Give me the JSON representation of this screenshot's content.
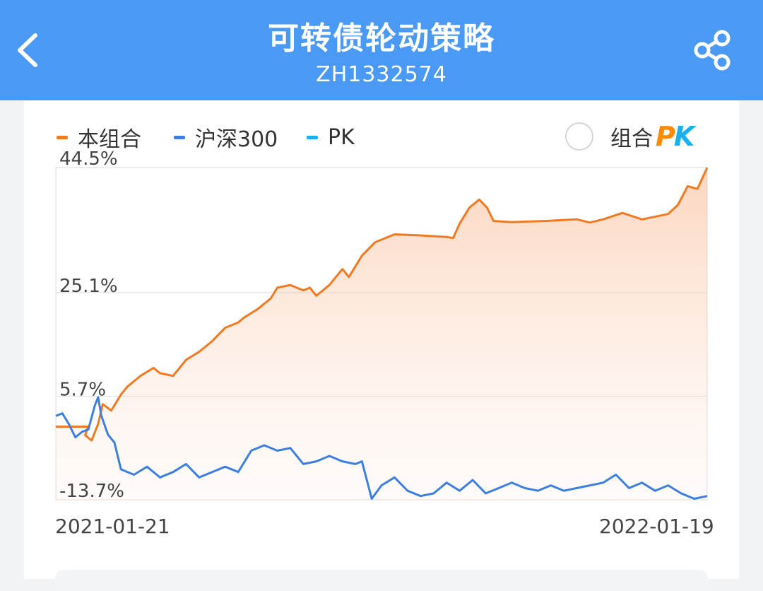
{
  "header": {
    "title": "可转债轮动策略",
    "subtitle": "ZH1332574"
  },
  "icons": {
    "back": "chevron-left-icon",
    "share": "share-icon"
  },
  "legend": {
    "items": [
      {
        "label": "本组合",
        "color": "#f07a22"
      },
      {
        "label": "沪深300",
        "color": "#3d7fe0"
      },
      {
        "label": "PK",
        "color": "#1ab0f0"
      }
    ]
  },
  "pk_toggle": {
    "label": "组合",
    "logo_p": "P",
    "logo_k": "K"
  },
  "chart_data": {
    "type": "line",
    "x_start": "2021-01-21",
    "x_end": "2022-01-19",
    "x_tick_labels": [
      "2021-01-21",
      "2022-01-19"
    ],
    "y_tick_labels": [
      "44.5%",
      "25.1%",
      "5.7%",
      "-13.7%"
    ],
    "y_ticks": [
      44.5,
      25.1,
      5.7,
      -13.7
    ],
    "ylim": [
      -13.7,
      48.5
    ],
    "grid": true,
    "legend_position": "top-left",
    "series": [
      {
        "name": "本组合",
        "color": "#f07a22",
        "area_fill": true,
        "points": [
          [
            0,
            0.0
          ],
          [
            0.05,
            0.0
          ],
          [
            0.045,
            -1.6
          ],
          [
            0.055,
            -2.6
          ],
          [
            0.065,
            0.5
          ],
          [
            0.072,
            4.2
          ],
          [
            0.085,
            3.0
          ],
          [
            0.1,
            6.0
          ],
          [
            0.11,
            7.5
          ],
          [
            0.13,
            9.5
          ],
          [
            0.15,
            11.0
          ],
          [
            0.16,
            10.0
          ],
          [
            0.18,
            9.5
          ],
          [
            0.2,
            12.5
          ],
          [
            0.22,
            14.0
          ],
          [
            0.24,
            16.0
          ],
          [
            0.26,
            18.5
          ],
          [
            0.28,
            19.5
          ],
          [
            0.29,
            20.5
          ],
          [
            0.31,
            22.0
          ],
          [
            0.33,
            24.0
          ],
          [
            0.34,
            26.0
          ],
          [
            0.36,
            26.5
          ],
          [
            0.38,
            25.5
          ],
          [
            0.39,
            26.0
          ],
          [
            0.4,
            24.5
          ],
          [
            0.42,
            26.5
          ],
          [
            0.44,
            29.5
          ],
          [
            0.45,
            28.0
          ],
          [
            0.46,
            30.0
          ],
          [
            0.47,
            32.0
          ],
          [
            0.49,
            34.5
          ],
          [
            0.5,
            35.0
          ],
          [
            0.52,
            36.0
          ],
          [
            0.56,
            35.8
          ],
          [
            0.6,
            35.5
          ],
          [
            0.61,
            35.3
          ],
          [
            0.62,
            38.0
          ],
          [
            0.635,
            41.0
          ],
          [
            0.65,
            42.5
          ],
          [
            0.662,
            41.0
          ],
          [
            0.672,
            38.5
          ],
          [
            0.7,
            38.3
          ],
          [
            0.75,
            38.5
          ],
          [
            0.8,
            38.8
          ],
          [
            0.82,
            38.2
          ],
          [
            0.84,
            38.8
          ],
          [
            0.87,
            40.0
          ],
          [
            0.9,
            38.8
          ],
          [
            0.94,
            39.8
          ],
          [
            0.955,
            41.5
          ],
          [
            0.97,
            45.0
          ],
          [
            0.985,
            44.5
          ],
          [
            1.0,
            48.5
          ]
        ]
      },
      {
        "name": "沪深300",
        "color": "#3d7fe0",
        "area_fill": false,
        "points": [
          [
            0,
            2.0
          ],
          [
            0.01,
            2.5
          ],
          [
            0.02,
            0.5
          ],
          [
            0.03,
            -2.0
          ],
          [
            0.04,
            -1.0
          ],
          [
            0.05,
            -0.5
          ],
          [
            0.06,
            4.0
          ],
          [
            0.065,
            5.5
          ],
          [
            0.07,
            2.0
          ],
          [
            0.08,
            -1.5
          ],
          [
            0.09,
            -3.0
          ],
          [
            0.1,
            -8.0
          ],
          [
            0.12,
            -9.0
          ],
          [
            0.14,
            -7.5
          ],
          [
            0.16,
            -9.5
          ],
          [
            0.18,
            -8.5
          ],
          [
            0.2,
            -7.0
          ],
          [
            0.22,
            -9.5
          ],
          [
            0.24,
            -8.5
          ],
          [
            0.26,
            -7.5
          ],
          [
            0.28,
            -8.5
          ],
          [
            0.3,
            -4.5
          ],
          [
            0.32,
            -3.5
          ],
          [
            0.34,
            -4.5
          ],
          [
            0.36,
            -4.0
          ],
          [
            0.38,
            -7.0
          ],
          [
            0.4,
            -6.5
          ],
          [
            0.42,
            -5.5
          ],
          [
            0.44,
            -6.5
          ],
          [
            0.46,
            -7.0
          ],
          [
            0.47,
            -6.5
          ],
          [
            0.485,
            -13.5
          ],
          [
            0.5,
            -11.0
          ],
          [
            0.52,
            -9.5
          ],
          [
            0.54,
            -12.0
          ],
          [
            0.56,
            -13.0
          ],
          [
            0.58,
            -12.5
          ],
          [
            0.6,
            -10.5
          ],
          [
            0.62,
            -12.0
          ],
          [
            0.64,
            -10.0
          ],
          [
            0.66,
            -12.5
          ],
          [
            0.68,
            -11.5
          ],
          [
            0.7,
            -10.5
          ],
          [
            0.72,
            -11.5
          ],
          [
            0.74,
            -12.0
          ],
          [
            0.76,
            -11.0
          ],
          [
            0.78,
            -12.0
          ],
          [
            0.8,
            -11.5
          ],
          [
            0.82,
            -11.0
          ],
          [
            0.84,
            -10.5
          ],
          [
            0.86,
            -9.0
          ],
          [
            0.88,
            -11.5
          ],
          [
            0.9,
            -10.5
          ],
          [
            0.92,
            -12.0
          ],
          [
            0.94,
            -11.0
          ],
          [
            0.96,
            -12.5
          ],
          [
            0.98,
            -13.5
          ],
          [
            1.0,
            -13.0
          ]
        ]
      }
    ]
  }
}
